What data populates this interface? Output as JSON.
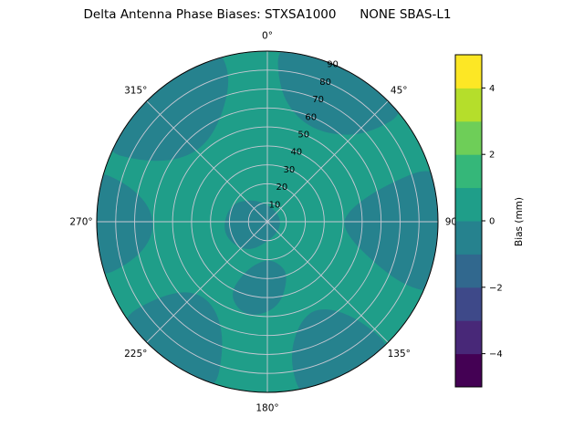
{
  "chart_data": {
    "type": "heatmap",
    "projection": "polar",
    "title": "Delta Antenna Phase Biases: STXSA1000      NONE SBAS-L1",
    "azimuth_ticks_deg": [
      0,
      45,
      90,
      135,
      180,
      225,
      270,
      315
    ],
    "azimuth_tick_labels": [
      "0°",
      "45°",
      "90°",
      "135°",
      "180°",
      "225°",
      "270°",
      "315°"
    ],
    "radial_ticks": [
      10,
      20,
      30,
      40,
      50,
      60,
      70,
      80,
      90
    ],
    "radial_tick_labels": [
      "10",
      "20",
      "30",
      "40",
      "50",
      "60",
      "70",
      "80",
      "90"
    ],
    "radial_range": [
      0,
      90
    ],
    "radial_label_azimuth_deg": 22.5,
    "grid": true,
    "grid_color": "#c9c9d4",
    "outline_color": "#000000",
    "colorbar": {
      "label": "Bias (mm)",
      "tick_values": [
        -4,
        -2,
        0,
        2,
        4
      ],
      "tick_labels": [
        "−4",
        "−2",
        "0",
        "2",
        "4"
      ],
      "range": [
        -5,
        5
      ],
      "colormap": "viridis",
      "level_step_mm": 1,
      "level_colors": [
        "#440154",
        "#482878",
        "#3e4989",
        "#31688e",
        "#26828e",
        "#1f9e89",
        "#35b779",
        "#6ece58",
        "#b5de2b",
        "#fde725"
      ]
    },
    "base_level": {
      "bias_mm_range": [
        0,
        1
      ],
      "color": "#1f9e89"
    },
    "regions": [
      {
        "bias_mm_range": [
          -1,
          0
        ],
        "color": "#26828e",
        "points_az_r": [
          [
            293,
            97
          ],
          [
            296,
            72
          ],
          [
            306,
            56
          ],
          [
            322,
            52
          ],
          [
            338,
            62
          ],
          [
            346,
            80
          ],
          [
            344,
            97
          ],
          [
            318,
            101
          ]
        ]
      },
      {
        "bias_mm_range": [
          -1,
          0
        ],
        "color": "#26828e",
        "points_az_r": [
          [
            3,
            97
          ],
          [
            5,
            70
          ],
          [
            17,
            56
          ],
          [
            35,
            56
          ],
          [
            49,
            70
          ],
          [
            52,
            97
          ],
          [
            27,
            101
          ]
        ]
      },
      {
        "bias_mm_range": [
          -1,
          0
        ],
        "color": "#26828e",
        "points_az_r": [
          [
            71,
            97
          ],
          [
            73,
            62
          ],
          [
            85,
            40
          ],
          [
            99,
            42
          ],
          [
            111,
            60
          ],
          [
            115,
            80
          ],
          [
            113,
            97
          ],
          [
            92,
            101
          ]
        ]
      },
      {
        "bias_mm_range": [
          -1,
          0
        ],
        "color": "#26828e",
        "points_az_r": [
          [
            135,
            97
          ],
          [
            137,
            68
          ],
          [
            149,
            52
          ],
          [
            163,
            56
          ],
          [
            171,
            74
          ],
          [
            169,
            97
          ],
          [
            152,
            101
          ]
        ]
      },
      {
        "bias_mm_range": [
          -1,
          0
        ],
        "color": "#26828e",
        "points_az_r": [
          [
            197,
            97
          ],
          [
            199,
            70
          ],
          [
            209,
            54
          ],
          [
            225,
            52
          ],
          [
            235,
            66
          ],
          [
            237,
            97
          ],
          [
            217,
            101
          ]
        ]
      },
      {
        "bias_mm_range": [
          -1,
          0
        ],
        "color": "#26828e",
        "points_az_r": [
          [
            251,
            97
          ],
          [
            254,
            72
          ],
          [
            264,
            60
          ],
          [
            277,
            62
          ],
          [
            285,
            76
          ],
          [
            287,
            97
          ],
          [
            269,
            101
          ]
        ]
      },
      {
        "bias_mm_range": [
          -1,
          0
        ],
        "color": "#26828e",
        "points_az_r": [
          [
            170,
            10
          ],
          [
            215,
            20
          ],
          [
            255,
            25
          ],
          [
            295,
            22
          ],
          [
            330,
            14
          ],
          [
            30,
            8
          ],
          [
            100,
            8
          ]
        ]
      },
      {
        "bias_mm_range": [
          -1,
          0
        ],
        "color": "#26828e",
        "points_az_r": [
          [
            158,
            30
          ],
          [
            172,
            46
          ],
          [
            192,
            52
          ],
          [
            208,
            44
          ],
          [
            204,
            28
          ],
          [
            184,
            20
          ],
          [
            166,
            22
          ]
        ]
      }
    ]
  }
}
